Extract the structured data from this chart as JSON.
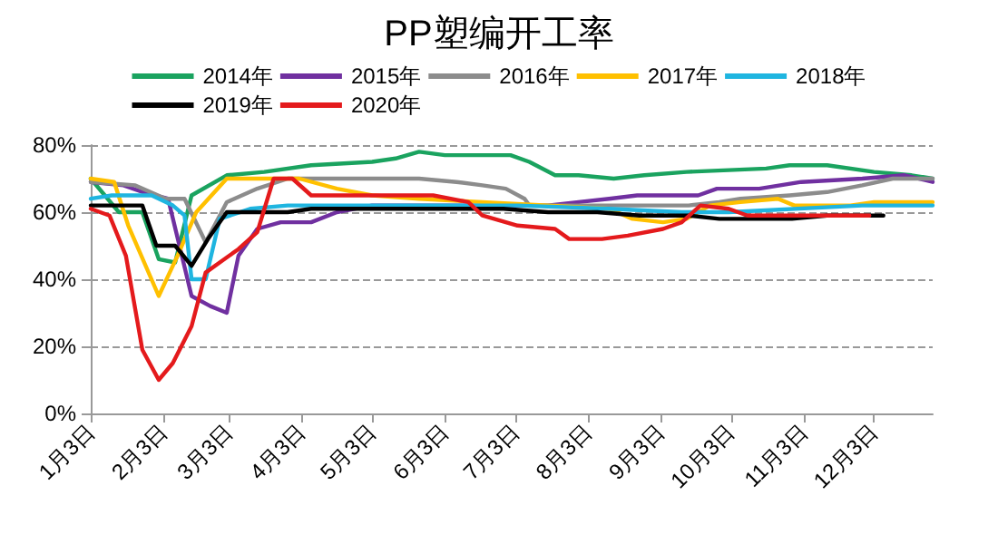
{
  "chart_data": {
    "type": "line",
    "title": "PP塑编开工率",
    "ylim": [
      0,
      80
    ],
    "yticks": [
      {
        "value": 0,
        "label": "0%"
      },
      {
        "value": 20,
        "label": "20%"
      },
      {
        "value": 40,
        "label": "40%"
      },
      {
        "value": 60,
        "label": "60%"
      },
      {
        "value": 80,
        "label": "80%"
      }
    ],
    "xlim": [
      "--01-03",
      "--12-28"
    ],
    "xticks": [
      {
        "value": "--01-03",
        "label": "1月3日"
      },
      {
        "value": "--02-03",
        "label": "2月3日"
      },
      {
        "value": "--03-03",
        "label": "3月3日"
      },
      {
        "value": "--04-03",
        "label": "4月3日"
      },
      {
        "value": "--05-03",
        "label": "5月3日"
      },
      {
        "value": "--06-03",
        "label": "6月3日"
      },
      {
        "value": "--07-03",
        "label": "7月3日"
      },
      {
        "value": "--08-03",
        "label": "8月3日"
      },
      {
        "value": "--09-03",
        "label": "9月3日"
      },
      {
        "value": "--10-03",
        "label": "10月3日"
      },
      {
        "value": "--11-03",
        "label": "11月3日"
      },
      {
        "value": "--12-03",
        "label": "12月3日"
      }
    ],
    "grid": "y",
    "legend": "top",
    "marker": "none",
    "line_style": "solid",
    "series": [
      {
        "name": "2014年",
        "color": "#1aa35f",
        "x": [
          "--01-03",
          "--01-15",
          "--01-25",
          "--02-01",
          "--02-08",
          "--02-15",
          "--03-02",
          "--03-18",
          "--04-07",
          "--05-03",
          "--05-13",
          "--05-23",
          "--06-03",
          "--06-21",
          "--07-01",
          "--07-09",
          "--07-20",
          "--07-30",
          "--08-14",
          "--08-27",
          "--09-14",
          "--10-18",
          "--10-28",
          "--11-13",
          "--12-03",
          "--12-19",
          "--12-28"
        ],
        "values": [
          70,
          60,
          60,
          46,
          45,
          65,
          71,
          72,
          74,
          75,
          76,
          78,
          77,
          77,
          77,
          75,
          71,
          71,
          70,
          71,
          72,
          73,
          74,
          74,
          72,
          71,
          70
        ]
      },
      {
        "name": "2015年",
        "color": "#7030a0",
        "x": [
          "--01-03",
          "--01-17",
          "--01-25",
          "--02-05",
          "--02-15",
          "--02-23",
          "--03-02",
          "--03-07",
          "--03-15",
          "--03-25",
          "--04-07",
          "--04-18",
          "--05-03",
          "--07-17",
          "--07-30",
          "--08-12",
          "--08-24",
          "--09-19",
          "--09-27",
          "--10-15",
          "--11-02",
          "--11-28",
          "--12-16",
          "--12-28"
        ],
        "values": [
          69,
          68,
          66,
          64,
          35,
          32,
          30,
          47,
          55,
          57,
          57,
          60,
          62,
          62,
          63,
          64,
          65,
          65,
          67,
          67,
          69,
          70,
          71,
          69
        ]
      },
      {
        "name": "2016年",
        "color": "#8c8c8c",
        "x": [
          "--01-03",
          "--01-22",
          "--02-04",
          "--02-12",
          "--02-21",
          "--03-02",
          "--03-15",
          "--03-28",
          "--05-23",
          "--06-08",
          "--06-19",
          "--06-29",
          "--07-07",
          "--07-09",
          "--09-15",
          "--09-28",
          "--10-07",
          "--10-28",
          "--11-13",
          "--11-28",
          "--12-11",
          "--12-28"
        ],
        "values": [
          69,
          68,
          64,
          64,
          51,
          63,
          67,
          70,
          70,
          69,
          68,
          67,
          64,
          62,
          62,
          63,
          64,
          65,
          66,
          68,
          70,
          70
        ]
      },
      {
        "name": "2017年",
        "color": "#ffc000",
        "x": [
          "--01-03",
          "--01-13",
          "--01-19",
          "--02-01",
          "--02-09",
          "--02-17",
          "--03-02",
          "--04-02",
          "--04-18",
          "--05-03",
          "--05-23",
          "--06-19",
          "--08-12",
          "--08-22",
          "--09-04",
          "--09-14",
          "--09-24",
          "--10-07",
          "--10-23",
          "--10-30",
          "--11-23",
          "--12-03",
          "--12-28"
        ],
        "values": [
          70,
          69,
          56,
          35,
          47,
          60,
          70,
          70,
          67,
          65,
          64,
          63,
          61,
          58,
          57,
          58,
          62,
          63,
          64,
          62,
          62,
          63,
          63
        ]
      },
      {
        "name": "2018年",
        "color": "#1fb5e0",
        "x": [
          "--01-03",
          "--01-12",
          "--01-29",
          "--02-07",
          "--02-12",
          "--02-15",
          "--02-21",
          "--02-27",
          "--03-12",
          "--03-28",
          "--04-28",
          "--07-04",
          "--08-12",
          "--09-12",
          "--10-02",
          "--11-28",
          "--12-28"
        ],
        "values": [
          64,
          65,
          65,
          62,
          59,
          40,
          40,
          58,
          61,
          62,
          62,
          62,
          61,
          60,
          60,
          62,
          62
        ]
      },
      {
        "name": "2019年",
        "color": "#000000",
        "x": [
          "--01-03",
          "--01-25",
          "--01-31",
          "--02-08",
          "--02-15",
          "--02-22",
          "--03-02",
          "--03-28",
          "--04-07",
          "--06-28",
          "--07-17",
          "--08-07",
          "--08-25",
          "--09-15",
          "--09-28",
          "--10-29",
          "--11-13",
          "--12-07"
        ],
        "values": [
          62,
          62,
          50,
          50,
          44,
          52,
          60,
          60,
          61,
          61,
          60,
          60,
          59,
          59,
          58,
          58,
          59,
          59
        ]
      },
      {
        "name": "2020年",
        "color": "#e41a1c",
        "x": [
          "--01-03",
          "--01-11",
          "--01-18",
          "--01-25",
          "--02-01",
          "--02-07",
          "--02-15",
          "--02-21",
          "--02-27",
          "--03-07",
          "--03-15",
          "--03-22",
          "--03-30",
          "--04-07",
          "--05-29",
          "--06-13",
          "--06-19",
          "--07-04",
          "--07-20",
          "--07-26",
          "--08-09",
          "--08-20",
          "--09-04",
          "--09-12",
          "--09-20",
          "--10-02",
          "--10-10",
          "--12-01"
        ],
        "values": [
          61,
          59,
          47,
          19,
          10,
          15,
          26,
          42,
          45,
          49,
          54,
          70,
          70,
          65,
          65,
          63,
          59,
          56,
          55,
          52,
          52,
          53,
          55,
          57,
          62,
          61,
          59,
          59
        ]
      }
    ]
  }
}
